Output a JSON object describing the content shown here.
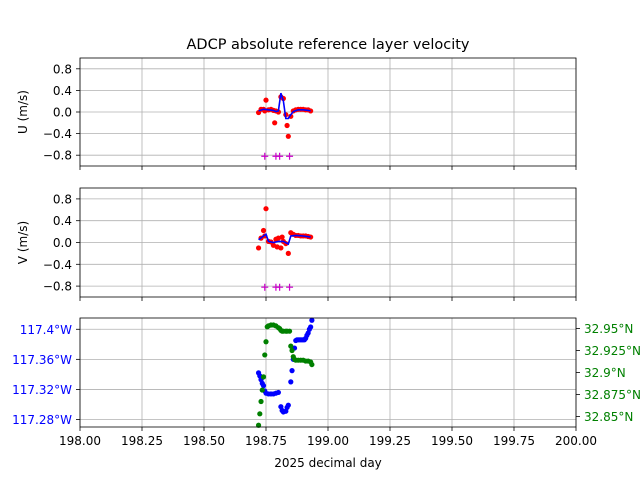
{
  "chart_data": [
    {
      "type": "scatter",
      "title": "ADCP absolute reference layer velocity",
      "ylabel": "U (m/s)",
      "xlim": [
        198.0,
        200.0
      ],
      "ylim": [
        -1.0,
        1.0
      ],
      "yticks": [
        "0.8",
        "0.4",
        "0.0",
        "−0.4",
        "−0.8"
      ],
      "ytick_values": [
        0.8,
        0.4,
        0.0,
        -0.4,
        -0.8
      ],
      "grid": true,
      "series": [
        {
          "color": "#ff0000",
          "points": [
            [
              198.72,
              -0.01
            ],
            [
              198.73,
              0.05
            ],
            [
              198.74,
              0.05
            ],
            [
              198.745,
              0.02
            ],
            [
              198.75,
              0.22
            ],
            [
              198.76,
              0.04
            ],
            [
              198.77,
              0.05
            ],
            [
              198.78,
              0.03
            ],
            [
              198.785,
              -0.2
            ],
            [
              198.79,
              0.02
            ],
            [
              198.8,
              0.0
            ],
            [
              198.81,
              0.28
            ],
            [
              198.82,
              0.25
            ],
            [
              198.83,
              -0.05
            ],
            [
              198.835,
              -0.25
            ],
            [
              198.84,
              -0.45
            ],
            [
              198.85,
              -0.08
            ],
            [
              198.86,
              0.02
            ],
            [
              198.87,
              0.04
            ],
            [
              198.88,
              0.05
            ],
            [
              198.89,
              0.05
            ],
            [
              198.9,
              0.05
            ],
            [
              198.91,
              0.04
            ],
            [
              198.92,
              0.04
            ],
            [
              198.93,
              0.02
            ]
          ]
        },
        {
          "color": "#0000ff",
          "line": [
            [
              198.72,
              0.02
            ],
            [
              198.74,
              0.05
            ],
            [
              198.76,
              0.04
            ],
            [
              198.78,
              0.03
            ],
            [
              198.79,
              0.01
            ],
            [
              198.8,
              0.02
            ],
            [
              198.81,
              0.35
            ],
            [
              198.82,
              0.2
            ],
            [
              198.83,
              -0.12
            ],
            [
              198.84,
              -0.12
            ],
            [
              198.85,
              -0.05
            ],
            [
              198.86,
              0.01
            ],
            [
              198.88,
              0.04
            ],
            [
              198.9,
              0.04
            ],
            [
              198.92,
              0.03
            ],
            [
              198.93,
              0.02
            ]
          ]
        },
        {
          "color": "#cc00cc",
          "marker": "+",
          "points": [
            [
              198.745,
              -0.82
            ],
            [
              198.79,
              -0.82
            ],
            [
              198.805,
              -0.82
            ],
            [
              198.845,
              -0.82
            ]
          ]
        }
      ]
    },
    {
      "type": "scatter",
      "ylabel": "V (m/s)",
      "xlim": [
        198.0,
        200.0
      ],
      "ylim": [
        -1.0,
        1.0
      ],
      "yticks": [
        "0.8",
        "0.4",
        "0.0",
        "−0.4",
        "−0.8"
      ],
      "ytick_values": [
        0.8,
        0.4,
        0.0,
        -0.4,
        -0.8
      ],
      "grid": true,
      "series": [
        {
          "color": "#ff0000",
          "points": [
            [
              198.72,
              -0.1
            ],
            [
              198.73,
              0.08
            ],
            [
              198.74,
              0.22
            ],
            [
              198.745,
              0.12
            ],
            [
              198.75,
              0.62
            ],
            [
              198.76,
              0.02
            ],
            [
              198.77,
              0.01
            ],
            [
              198.78,
              -0.05
            ],
            [
              198.79,
              0.06
            ],
            [
              198.795,
              -0.08
            ],
            [
              198.8,
              0.08
            ],
            [
              198.81,
              -0.1
            ],
            [
              198.815,
              0.1
            ],
            [
              198.82,
              0.02
            ],
            [
              198.83,
              -0.02
            ],
            [
              198.84,
              -0.2
            ],
            [
              198.85,
              0.18
            ],
            [
              198.86,
              0.15
            ],
            [
              198.87,
              0.13
            ],
            [
              198.88,
              0.13
            ],
            [
              198.89,
              0.12
            ],
            [
              198.9,
              0.12
            ],
            [
              198.91,
              0.12
            ],
            [
              198.92,
              0.11
            ],
            [
              198.93,
              0.1
            ]
          ]
        },
        {
          "color": "#0000ff",
          "line": [
            [
              198.72,
              0.05
            ],
            [
              198.74,
              0.12
            ],
            [
              198.75,
              0.15
            ],
            [
              198.76,
              0.02
            ],
            [
              198.78,
              0.0
            ],
            [
              198.8,
              0.02
            ],
            [
              198.82,
              0.02
            ],
            [
              198.84,
              -0.03
            ],
            [
              198.85,
              0.12
            ],
            [
              198.87,
              0.13
            ],
            [
              198.9,
              0.12
            ],
            [
              198.93,
              0.1
            ]
          ]
        },
        {
          "color": "#cc00cc",
          "marker": "+",
          "points": [
            [
              198.745,
              -0.82
            ],
            [
              198.79,
              -0.82
            ],
            [
              198.805,
              -0.82
            ],
            [
              198.845,
              -0.82
            ]
          ]
        }
      ]
    },
    {
      "type": "scatter",
      "xlabel": "2025 decimal day",
      "xlim": [
        198.0,
        200.0
      ],
      "xticks": [
        "198.00",
        "198.25",
        "198.50",
        "198.75",
        "199.00",
        "199.25",
        "199.50",
        "199.75",
        "200.00"
      ],
      "xtick_values": [
        198.0,
        198.25,
        198.5,
        198.75,
        199.0,
        199.25,
        199.5,
        199.75,
        200.0
      ],
      "grid": true,
      "left_axis": {
        "color": "#0000ff",
        "ylim": [
          -117.27,
          -117.415
        ],
        "yticks": [
          "117.28°W",
          "117.32°W",
          "117.36°W",
          "117.4°W"
        ],
        "ytick_values": [
          -117.28,
          -117.32,
          -117.36,
          -117.4
        ],
        "points": [
          [
            198.72,
            -117.342
          ],
          [
            198.725,
            -117.338
          ],
          [
            198.73,
            -117.333
          ],
          [
            198.735,
            -117.328
          ],
          [
            198.74,
            -117.325
          ],
          [
            198.745,
            -117.318
          ],
          [
            198.75,
            -117.315
          ],
          [
            198.76,
            -117.314
          ],
          [
            198.77,
            -117.314
          ],
          [
            198.78,
            -117.314
          ],
          [
            198.79,
            -117.315
          ],
          [
            198.8,
            -117.316
          ],
          [
            198.81,
            -117.297
          ],
          [
            198.815,
            -117.292
          ],
          [
            198.82,
            -117.29
          ],
          [
            198.83,
            -117.291
          ],
          [
            198.835,
            -117.296
          ],
          [
            198.84,
            -117.299
          ],
          [
            198.85,
            -117.33
          ],
          [
            198.855,
            -117.345
          ],
          [
            198.86,
            -117.36
          ],
          [
            198.865,
            -117.375
          ],
          [
            198.87,
            -117.385
          ],
          [
            198.875,
            -117.386
          ],
          [
            198.88,
            -117.386
          ],
          [
            198.885,
            -117.386
          ],
          [
            198.89,
            -117.386
          ],
          [
            198.895,
            -117.386
          ],
          [
            198.9,
            -117.386
          ],
          [
            198.905,
            -117.386
          ],
          [
            198.91,
            -117.388
          ],
          [
            198.915,
            -117.392
          ],
          [
            198.92,
            -117.395
          ],
          [
            198.925,
            -117.4
          ],
          [
            198.93,
            -117.403
          ],
          [
            198.935,
            -117.412
          ]
        ]
      },
      "right_axis": {
        "color": "#008000",
        "ylim": [
          32.838,
          32.962
        ],
        "yticks": [
          "32.95°N",
          "32.925°N",
          "32.9°N",
          "32.875°N",
          "32.85°N"
        ],
        "ytick_values": [
          32.95,
          32.925,
          32.9,
          32.875,
          32.85
        ],
        "points": [
          [
            198.72,
            32.84
          ],
          [
            198.725,
            32.853
          ],
          [
            198.73,
            32.867
          ],
          [
            198.735,
            32.88
          ],
          [
            198.74,
            32.895
          ],
          [
            198.745,
            32.92
          ],
          [
            198.75,
            32.935
          ],
          [
            198.755,
            32.952
          ],
          [
            198.76,
            32.953
          ],
          [
            198.77,
            32.954
          ],
          [
            198.78,
            32.954
          ],
          [
            198.79,
            32.953
          ],
          [
            198.8,
            32.951
          ],
          [
            198.805,
            32.95
          ],
          [
            198.81,
            32.948
          ],
          [
            198.815,
            32.947
          ],
          [
            198.82,
            32.947
          ],
          [
            198.83,
            32.947
          ],
          [
            198.835,
            32.947
          ],
          [
            198.845,
            32.947
          ],
          [
            198.85,
            32.93
          ],
          [
            198.855,
            32.925
          ],
          [
            198.86,
            32.918
          ],
          [
            198.865,
            32.915
          ],
          [
            198.87,
            32.914
          ],
          [
            198.88,
            32.914
          ],
          [
            198.89,
            32.914
          ],
          [
            198.9,
            32.914
          ],
          [
            198.91,
            32.913
          ],
          [
            198.92,
            32.913
          ],
          [
            198.93,
            32.912
          ],
          [
            198.935,
            32.909
          ]
        ]
      }
    }
  ]
}
